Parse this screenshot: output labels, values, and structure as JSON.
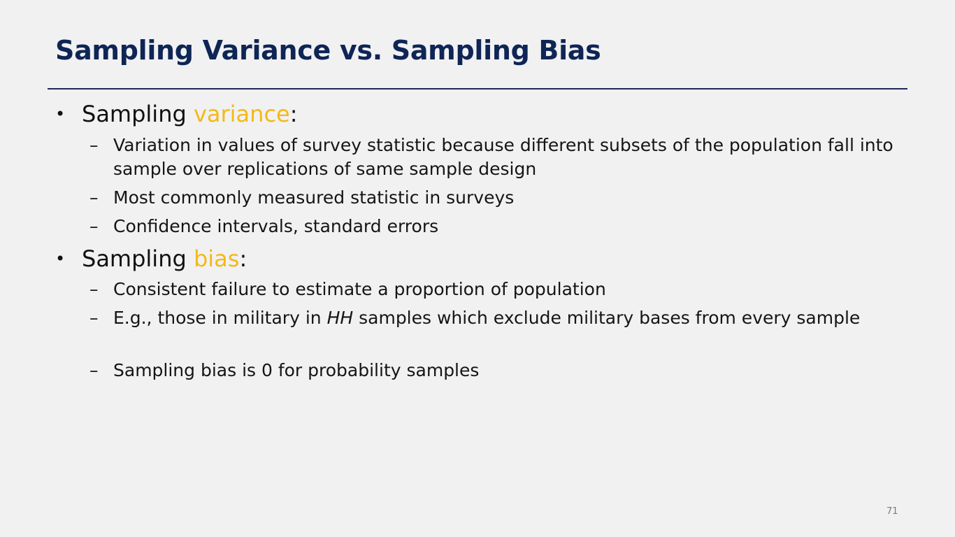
{
  "slide": {
    "title": "Sampling Variance vs. Sampling Bias",
    "page_number": "71",
    "bullet_symbol": "•",
    "dash_symbol": "–",
    "accent_color": "#f3b917",
    "title_color": "#0e2555"
  },
  "bullets": [
    {
      "prefix": "Sampling ",
      "highlight": "variance",
      "suffix": ":",
      "subitems": [
        "Variation in values of survey statistic because different subsets of the population fall into sample over replications of same sample design",
        "Most commonly measured statistic in surveys",
        "Confidence intervals, standard errors"
      ]
    },
    {
      "prefix": "Sampling ",
      "highlight": "bias",
      "suffix": ":",
      "subitems": [
        {
          "before": "E.g., those in military in ",
          "italic": "HH",
          "after": " samples which exclude military bases from every sample"
        }
      ],
      "subitem_first": "Consistent failure to estimate a proportion of population",
      "subitem_last": "Sampling bias is 0 for probability samples"
    }
  ]
}
